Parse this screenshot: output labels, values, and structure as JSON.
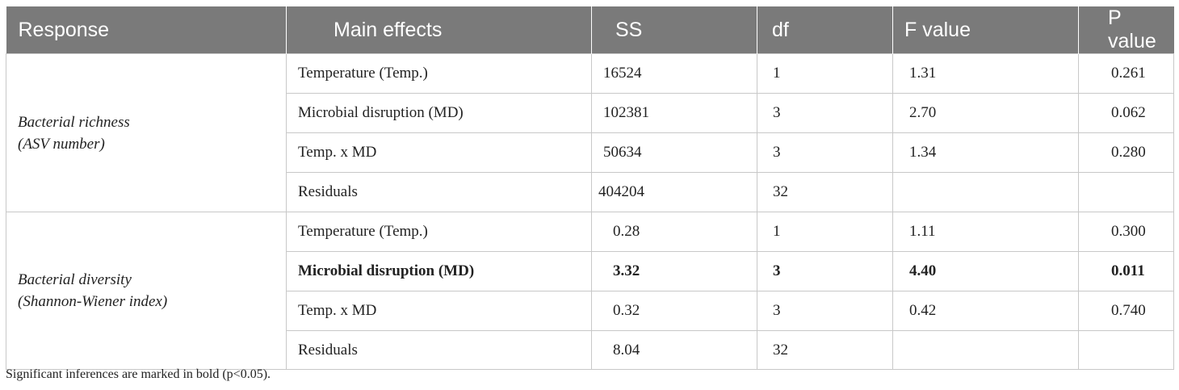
{
  "table": {
    "headers": [
      "Response",
      "Main effects",
      "SS",
      "df",
      "F value",
      "P value"
    ],
    "groups": [
      {
        "response_line1": "Bacterial richness",
        "response_line2": "(ASV number)",
        "rows": [
          {
            "effect": "Temperature (Temp.)",
            "ss": "16524",
            "df": "1",
            "f": "1.31",
            "p": "0.261"
          },
          {
            "effect": "Microbial disruption (MD)",
            "ss": "102381",
            "df": "3",
            "f": "2.70",
            "p": "0.062"
          },
          {
            "effect": "Temp. x MD",
            "ss": "50634",
            "df": "3",
            "f": "1.34",
            "p": "0.280"
          },
          {
            "effect": "Residuals",
            "ss": "404204",
            "df": "32",
            "f": "",
            "p": ""
          }
        ]
      },
      {
        "response_line1": "Bacterial diversity",
        "response_line2": "(Shannon-Wiener index)",
        "rows": [
          {
            "effect": "Temperature (Temp.)",
            "ss": "0.28",
            "df": "1",
            "f": "1.11",
            "p": "0.300"
          },
          {
            "effect": "Microbial disruption (MD)",
            "ss": "3.32",
            "df": "3",
            "f": "4.40",
            "p": "0.011"
          },
          {
            "effect": "Temp. x MD",
            "ss": "0.32",
            "df": "3",
            "f": "0.42",
            "p": "0.740"
          },
          {
            "effect": "Residuals",
            "ss": "8.04",
            "df": "32",
            "f": "",
            "p": ""
          }
        ]
      }
    ]
  },
  "footnote": "Significant inferences are marked in bold (p<0.05).",
  "colors": {
    "header_bg": "#7a7a7a",
    "header_text": "#ffffff",
    "border": "#c8c8c8",
    "text": "#222222"
  }
}
